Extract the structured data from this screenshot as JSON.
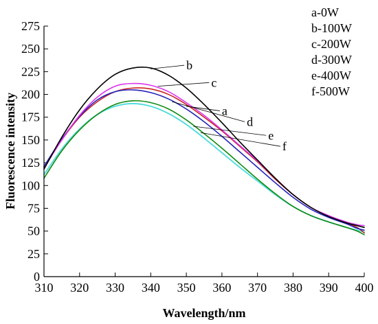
{
  "chart_data": {
    "type": "line",
    "xlabel": "Wavelength/nm",
    "ylabel": "Fluorescence intensity",
    "xlim": [
      310,
      400
    ],
    "ylim": [
      0,
      275
    ],
    "xticks": [
      310,
      320,
      330,
      340,
      350,
      360,
      370,
      380,
      390,
      400
    ],
    "yticks": [
      0,
      25,
      50,
      75,
      100,
      125,
      150,
      175,
      200,
      225,
      250,
      275
    ],
    "x": [
      310,
      315,
      320,
      325,
      330,
      335,
      340,
      345,
      350,
      355,
      360,
      365,
      370,
      375,
      380,
      385,
      390,
      395,
      398,
      400
    ],
    "legend_position": "top-right",
    "legend": [
      "a-0W",
      "b-100W",
      "c-200W",
      "d-300W",
      "e-400W",
      "f-500W"
    ],
    "series": [
      {
        "name": "a",
        "color": "#cc2222",
        "label_point": [
          350,
          187
        ],
        "label_pos": [
          360,
          182
        ],
        "values": [
          120,
          150,
          175,
          192,
          203,
          207,
          206,
          200,
          189,
          175,
          160,
          143,
          126,
          107,
          90,
          76,
          66,
          59,
          54,
          48
        ]
      },
      {
        "name": "b",
        "color": "#000000",
        "label_point": [
          340,
          228
        ],
        "label_pos": [
          350,
          232
        ],
        "values": [
          118,
          153,
          183,
          206,
          222,
          229,
          229,
          221,
          207,
          189,
          169,
          148,
          128,
          108,
          90,
          76,
          66,
          59,
          56,
          54
        ]
      },
      {
        "name": "c",
        "color": "#dd33ee",
        "label_point": [
          342,
          209
        ],
        "label_pos": [
          357,
          213
        ],
        "values": [
          119,
          150,
          177,
          197,
          209,
          212,
          210,
          203,
          191,
          177,
          161,
          144,
          127,
          108,
          90,
          76,
          67,
          60,
          57,
          56
        ]
      },
      {
        "name": "d",
        "color": "#2222bb",
        "label_point": [
          346,
          192
        ],
        "label_pos": [
          367,
          170
        ],
        "values": [
          121,
          151,
          176,
          194,
          203,
          205,
          202,
          195,
          184,
          170,
          154,
          137,
          120,
          103,
          87,
          74,
          65,
          58,
          53,
          51
        ]
      },
      {
        "name": "e",
        "color": "#118811",
        "label_point": [
          352,
          165
        ],
        "label_pos": [
          373,
          155
        ],
        "values": [
          108,
          138,
          161,
          178,
          189,
          193,
          191,
          184,
          172,
          157,
          141,
          124,
          107,
          91,
          77,
          67,
          60,
          54,
          50,
          46
        ]
      },
      {
        "name": "f",
        "color": "#55dddd",
        "label_point": [
          354,
          158
        ],
        "label_pos": [
          377,
          143
        ],
        "values": [
          112,
          140,
          162,
          178,
          187,
          190,
          187,
          179,
          167,
          152,
          136,
          120,
          105,
          90,
          77,
          67,
          60,
          54,
          51,
          49
        ]
      }
    ]
  }
}
